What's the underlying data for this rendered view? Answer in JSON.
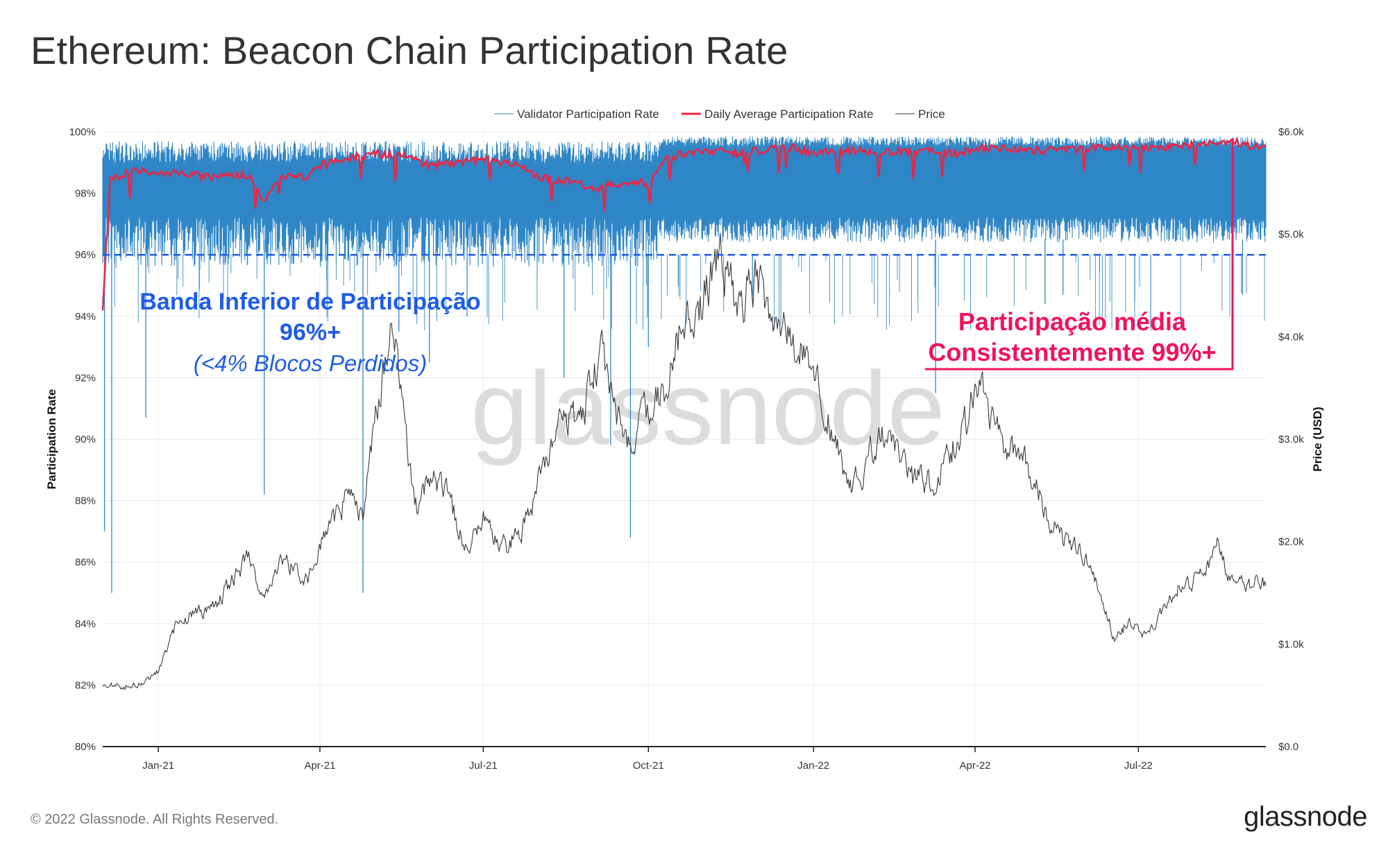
{
  "page": {
    "title": "Ethereum: Beacon Chain Participation Rate",
    "copyright": "© 2022 Glassnode. All Rights Reserved.",
    "logo": "glassnode",
    "watermark": "glassnode"
  },
  "chart_data": {
    "type": "line",
    "title": "Ethereum: Beacon Chain Participation Rate",
    "xlabel": "",
    "ylabel": "Participation Rate",
    "y2label": "Price (USD)",
    "ylim": [
      80,
      100
    ],
    "y2lim": [
      0,
      6000
    ],
    "x_range": [
      "2020-12-01",
      "2022-09-10"
    ],
    "x_ticks": [
      {
        "date": "2021-01-01",
        "label": "Jan-21"
      },
      {
        "date": "2021-04-01",
        "label": "Apr-21"
      },
      {
        "date": "2021-07-01",
        "label": "Jul-21"
      },
      {
        "date": "2021-10-01",
        "label": "Oct-21"
      },
      {
        "date": "2022-01-01",
        "label": "Jan-22"
      },
      {
        "date": "2022-04-01",
        "label": "Apr-22"
      },
      {
        "date": "2022-07-01",
        "label": "Jul-22"
      }
    ],
    "y_ticks": [
      80,
      82,
      84,
      86,
      88,
      90,
      92,
      94,
      96,
      98,
      100
    ],
    "y_tick_labels": [
      "80%",
      "82%",
      "84%",
      "86%",
      "88%",
      "90%",
      "92%",
      "94%",
      "96%",
      "98%",
      "100%"
    ],
    "y2_ticks": [
      0,
      1000,
      2000,
      3000,
      4000,
      5000,
      6000
    ],
    "y2_tick_labels": [
      "$0.0",
      "$1.0k",
      "$2.0k",
      "$3.0k",
      "$4.0k",
      "$5.0k",
      "$6.0k"
    ],
    "legend": [
      {
        "name": "Validator Participation Rate",
        "color": "#2f86c6"
      },
      {
        "name": "Daily Average Participation Rate",
        "color": "#ef2344"
      },
      {
        "name": "Price",
        "color": "#999999"
      }
    ],
    "legend_position": "top-center",
    "threshold": {
      "value": 96,
      "color": "#1f5ce8",
      "style": "dashed"
    },
    "series": [
      {
        "name": "Daily Average Participation Rate",
        "color": "#ef2344",
        "points": [
          [
            "2020-12-01",
            94.3
          ],
          [
            "2020-12-05",
            98.4
          ],
          [
            "2020-12-15",
            98.7
          ],
          [
            "2021-01-01",
            98.7
          ],
          [
            "2021-01-20",
            98.6
          ],
          [
            "2021-02-01",
            98.5
          ],
          [
            "2021-02-20",
            98.6
          ],
          [
            "2021-03-01",
            97.8
          ],
          [
            "2021-03-10",
            98.6
          ],
          [
            "2021-03-25",
            98.5
          ],
          [
            "2021-04-01",
            98.9
          ],
          [
            "2021-04-15",
            99.1
          ],
          [
            "2021-05-01",
            99.3
          ],
          [
            "2021-05-20",
            99.2
          ],
          [
            "2021-06-01",
            98.9
          ],
          [
            "2021-06-15",
            99.0
          ],
          [
            "2021-07-01",
            99.1
          ],
          [
            "2021-07-20",
            98.9
          ],
          [
            "2021-08-01",
            98.5
          ],
          [
            "2021-08-20",
            98.4
          ],
          [
            "2021-09-01",
            98.1
          ],
          [
            "2021-09-10",
            98.3
          ],
          [
            "2021-09-25",
            98.4
          ],
          [
            "2021-10-01",
            98.2
          ],
          [
            "2021-10-08",
            99.0
          ],
          [
            "2021-10-20",
            99.3
          ],
          [
            "2021-11-05",
            99.4
          ],
          [
            "2021-11-20",
            99.3
          ],
          [
            "2021-12-01",
            99.4
          ],
          [
            "2021-12-20",
            99.5
          ],
          [
            "2022-01-01",
            99.3
          ],
          [
            "2022-01-20",
            99.4
          ],
          [
            "2022-02-10",
            99.3
          ],
          [
            "2022-03-01",
            99.4
          ],
          [
            "2022-03-20",
            99.3
          ],
          [
            "2022-04-10",
            99.5
          ],
          [
            "2022-05-01",
            99.4
          ],
          [
            "2022-05-20",
            99.4
          ],
          [
            "2022-06-10",
            99.5
          ],
          [
            "2022-07-01",
            99.5
          ],
          [
            "2022-07-20",
            99.5
          ],
          [
            "2022-08-05",
            99.6
          ],
          [
            "2022-08-20",
            99.7
          ],
          [
            "2022-09-05",
            99.5
          ]
        ]
      },
      {
        "name": "Price",
        "color": "#555555",
        "points": [
          [
            "2020-12-01",
            600
          ],
          [
            "2020-12-15",
            590
          ],
          [
            "2020-12-25",
            640
          ],
          [
            "2021-01-01",
            740
          ],
          [
            "2021-01-10",
            1150
          ],
          [
            "2021-01-20",
            1300
          ],
          [
            "2021-02-01",
            1350
          ],
          [
            "2021-02-20",
            1850
          ],
          [
            "2021-02-28",
            1450
          ],
          [
            "2021-03-10",
            1800
          ],
          [
            "2021-03-25",
            1650
          ],
          [
            "2021-04-01",
            1950
          ],
          [
            "2021-04-15",
            2400
          ],
          [
            "2021-04-25",
            2300
          ],
          [
            "2021-05-05",
            3500
          ],
          [
            "2021-05-12",
            4200
          ],
          [
            "2021-05-20",
            2800
          ],
          [
            "2021-05-25",
            2300
          ],
          [
            "2021-06-01",
            2650
          ],
          [
            "2021-06-10",
            2500
          ],
          [
            "2021-06-22",
            1900
          ],
          [
            "2021-07-01",
            2200
          ],
          [
            "2021-07-15",
            1950
          ],
          [
            "2021-07-25",
            2200
          ],
          [
            "2021-08-05",
            2800
          ],
          [
            "2021-08-15",
            3200
          ],
          [
            "2021-08-25",
            3200
          ],
          [
            "2021-09-05",
            3900
          ],
          [
            "2021-09-10",
            3400
          ],
          [
            "2021-09-20",
            2900
          ],
          [
            "2021-10-01",
            3300
          ],
          [
            "2021-10-10",
            3500
          ],
          [
            "2021-10-20",
            4100
          ],
          [
            "2021-10-30",
            4300
          ],
          [
            "2021-11-10",
            4800
          ],
          [
            "2021-11-20",
            4300
          ],
          [
            "2021-12-01",
            4600
          ],
          [
            "2021-12-10",
            4100
          ],
          [
            "2021-12-20",
            3900
          ],
          [
            "2022-01-01",
            3750
          ],
          [
            "2022-01-10",
            3200
          ],
          [
            "2022-01-22",
            2500
          ],
          [
            "2022-02-10",
            3100
          ],
          [
            "2022-02-24",
            2600
          ],
          [
            "2022-03-10",
            2600
          ],
          [
            "2022-03-25",
            3100
          ],
          [
            "2022-04-03",
            3500
          ],
          [
            "2022-04-15",
            3000
          ],
          [
            "2022-04-30",
            2800
          ],
          [
            "2022-05-10",
            2300
          ],
          [
            "2022-05-20",
            2000
          ],
          [
            "2022-06-01",
            1850
          ],
          [
            "2022-06-12",
            1400
          ],
          [
            "2022-06-18",
            1050
          ],
          [
            "2022-06-25",
            1200
          ],
          [
            "2022-07-05",
            1100
          ],
          [
            "2022-07-15",
            1300
          ],
          [
            "2022-07-25",
            1600
          ],
          [
            "2022-08-05",
            1650
          ],
          [
            "2022-08-14",
            1950
          ],
          [
            "2022-08-22",
            1600
          ],
          [
            "2022-09-01",
            1550
          ],
          [
            "2022-09-06",
            1650
          ],
          [
            "2022-09-10",
            1550
          ]
        ]
      },
      {
        "name": "Validator Participation Rate",
        "color": "#2f86c6",
        "band": {
          "typical_low": 96.5,
          "typical_high": 99.6
        },
        "notable_dips": [
          [
            "2020-12-02",
            87.0
          ],
          [
            "2020-12-06",
            85.0
          ],
          [
            "2020-12-25",
            90.7
          ],
          [
            "2021-03-01",
            88.2
          ],
          [
            "2021-04-25",
            85.0
          ],
          [
            "2021-05-15",
            93.5
          ],
          [
            "2021-06-01",
            92.5
          ],
          [
            "2021-06-22",
            94.0
          ],
          [
            "2021-08-15",
            92.0
          ],
          [
            "2021-09-10",
            89.8
          ],
          [
            "2021-09-21",
            86.8
          ],
          [
            "2021-10-01",
            93.0
          ],
          [
            "2022-03-10",
            91.5
          ],
          [
            "2022-05-10",
            94.4
          ],
          [
            "2022-05-20",
            94.7
          ],
          [
            "2022-08-28",
            94.7
          ]
        ]
      }
    ],
    "annotations": [
      {
        "lines": [
          "Banda Inferior de Participação",
          "96%+",
          "(<4% Blocos Perdidos)"
        ],
        "color": "#1f5ce8"
      },
      {
        "lines": [
          "Participação média",
          "Consistentemente 99%+"
        ],
        "color": "#f0135c"
      }
    ]
  }
}
